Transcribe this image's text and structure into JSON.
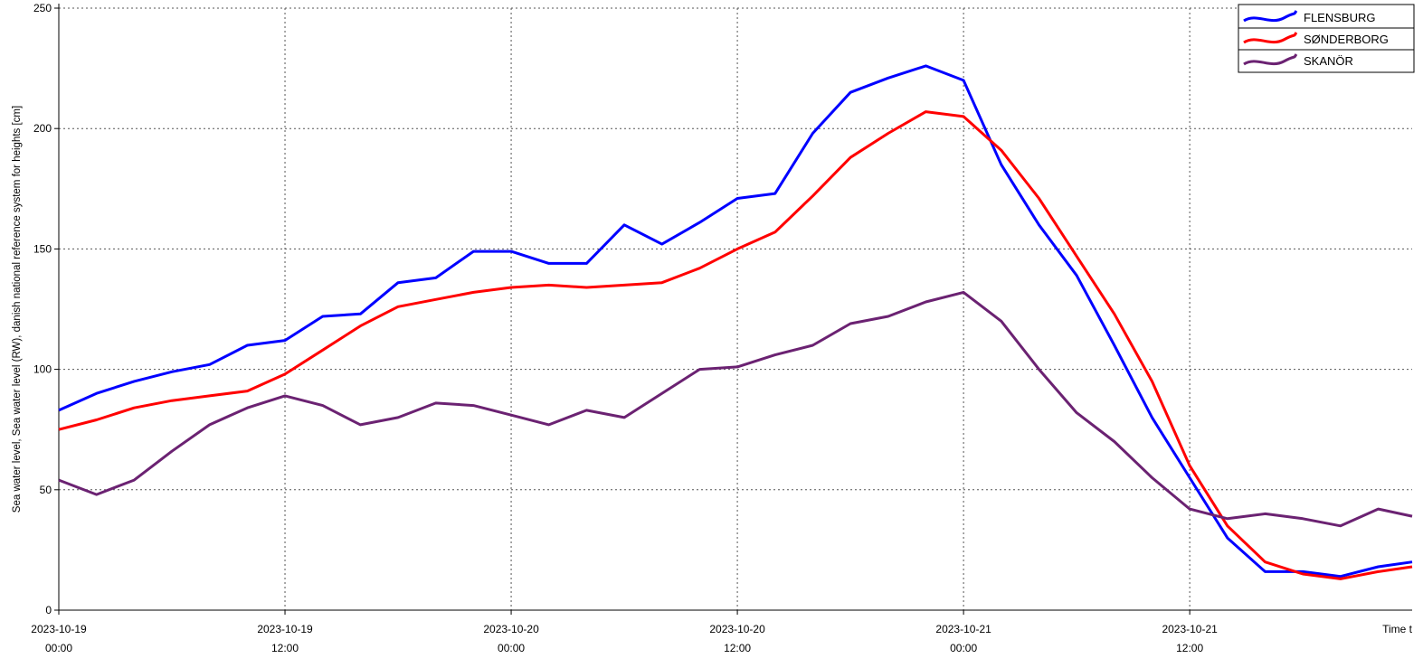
{
  "chart_data": {
    "type": "line",
    "y_label": "Sea water level, Sea water level (RW), danish national reference system for heights [cm]",
    "x_label": "Time t",
    "x": [
      "2023-10-19 00:00",
      "2023-10-19 02:00",
      "2023-10-19 04:00",
      "2023-10-19 06:00",
      "2023-10-19 08:00",
      "2023-10-19 10:00",
      "2023-10-19 12:00",
      "2023-10-19 14:00",
      "2023-10-19 16:00",
      "2023-10-19 18:00",
      "2023-10-19 20:00",
      "2023-10-19 22:00",
      "2023-10-20 00:00",
      "2023-10-20 02:00",
      "2023-10-20 04:00",
      "2023-10-20 06:00",
      "2023-10-20 08:00",
      "2023-10-20 10:00",
      "2023-10-20 12:00",
      "2023-10-20 14:00",
      "2023-10-20 16:00",
      "2023-10-20 18:00",
      "2023-10-20 20:00",
      "2023-10-20 22:00",
      "2023-10-21 00:00",
      "2023-10-21 02:00",
      "2023-10-21 04:00",
      "2023-10-21 06:00",
      "2023-10-21 08:00",
      "2023-10-21 10:00",
      "2023-10-21 12:00",
      "2023-10-21 14:00",
      "2023-10-21 16:00",
      "2023-10-21 18:00",
      "2023-10-21 20:00",
      "2023-10-21 22:00",
      "2023-10-21 23:48"
    ],
    "series": [
      {
        "name": "FLENSBURG",
        "color": "#0000ff",
        "values": [
          83,
          90,
          95,
          99,
          102,
          110,
          112,
          122,
          123,
          136,
          138,
          149,
          149,
          144,
          144,
          160,
          152,
          161,
          171,
          173,
          198,
          215,
          221,
          226,
          220,
          185,
          160,
          139,
          110,
          80,
          55,
          30,
          16,
          16,
          14,
          18,
          20
        ]
      },
      {
        "name": "SØNDERBORG",
        "color": "#ff0000",
        "values": [
          75,
          79,
          84,
          87,
          89,
          91,
          98,
          108,
          118,
          126,
          129,
          132,
          134,
          135,
          134,
          135,
          136,
          142,
          150,
          157,
          172,
          188,
          198,
          207,
          205,
          191,
          171,
          147,
          123,
          95,
          60,
          35,
          20,
          15,
          13,
          16,
          18
        ]
      },
      {
        "name": "SKANÖR",
        "color": "#6b2272",
        "values": [
          54,
          48,
          54,
          66,
          77,
          84,
          89,
          85,
          77,
          80,
          86,
          85,
          81,
          77,
          83,
          80,
          90,
          100,
          101,
          106,
          110,
          119,
          122,
          128,
          132,
          120,
          100,
          82,
          70,
          55,
          42,
          38,
          40,
          38,
          35,
          42,
          39
        ]
      }
    ],
    "xlim": [
      "2023-10-19 00:00",
      "2023-10-21 23:48"
    ],
    "xticks": [
      "2023-10-19 00:00",
      "2023-10-19 12:00",
      "2023-10-20 00:00",
      "2023-10-20 12:00",
      "2023-10-21 00:00",
      "2023-10-21 12:00"
    ],
    "ylim": [
      0,
      250
    ],
    "yticks": [
      0,
      50,
      100,
      150,
      200,
      250
    ],
    "grid": true,
    "legend": "upper right"
  }
}
